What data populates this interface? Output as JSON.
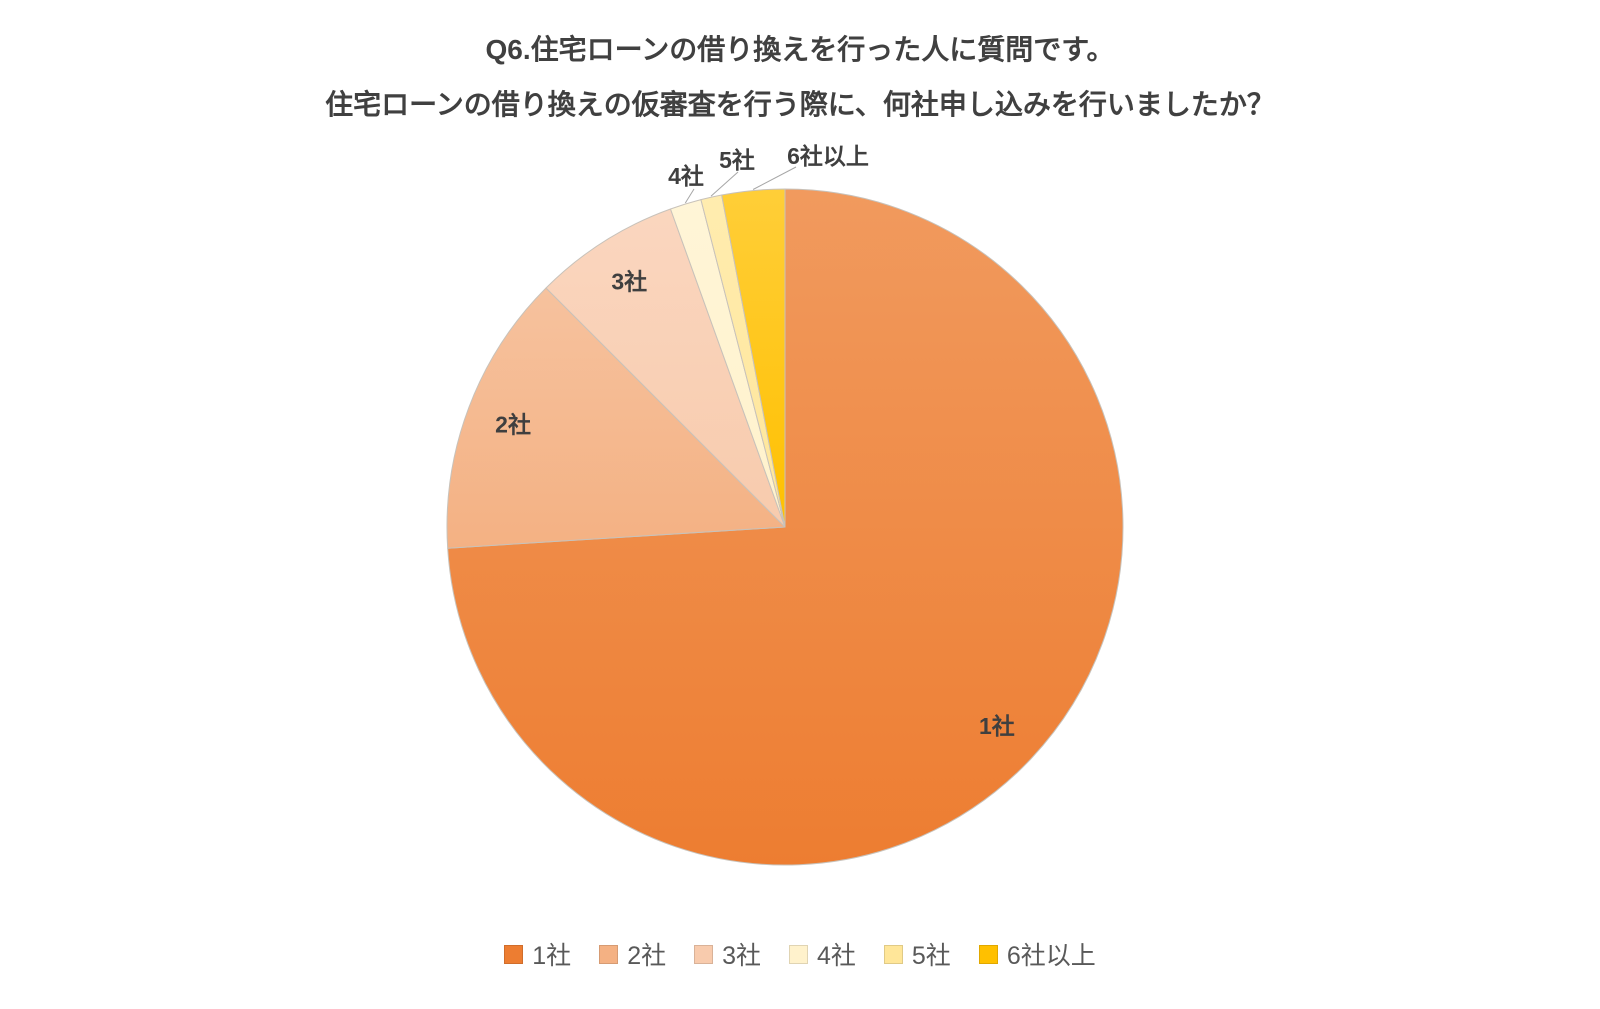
{
  "title": {
    "line1": "Q6.住宅ローンの借り換えを行った人に質問です。",
    "line2": "住宅ローンの借り換えの仮審査を行う際に、何社申し込みを行いましたか？"
  },
  "chart_data": {
    "type": "pie",
    "title": "Q6.住宅ローンの借り換えを行った人に質問です。住宅ローンの借り換えの仮審査を行う際に、何社申し込みを行いましたか？",
    "units": "%",
    "start_angle_deg": 0,
    "direction": "clockwise",
    "legend_position": "bottom",
    "series": [
      {
        "label": "1社",
        "value": 74,
        "color": "#ED7D31",
        "label_placement": "inside"
      },
      {
        "label": "2社",
        "value": 13.5,
        "color": "#F4B183",
        "label_placement": "inside"
      },
      {
        "label": "3社",
        "value": 7,
        "color": "#F8CBAD",
        "label_placement": "inside"
      },
      {
        "label": "4社",
        "value": 1.5,
        "color": "#FFF2CC",
        "label_placement": "outside"
      },
      {
        "label": "5社",
        "value": 1,
        "color": "#FFE699",
        "label_placement": "outside"
      },
      {
        "label": "6社以上",
        "value": 3,
        "color": "#FFC000",
        "label_placement": "outside"
      }
    ]
  }
}
